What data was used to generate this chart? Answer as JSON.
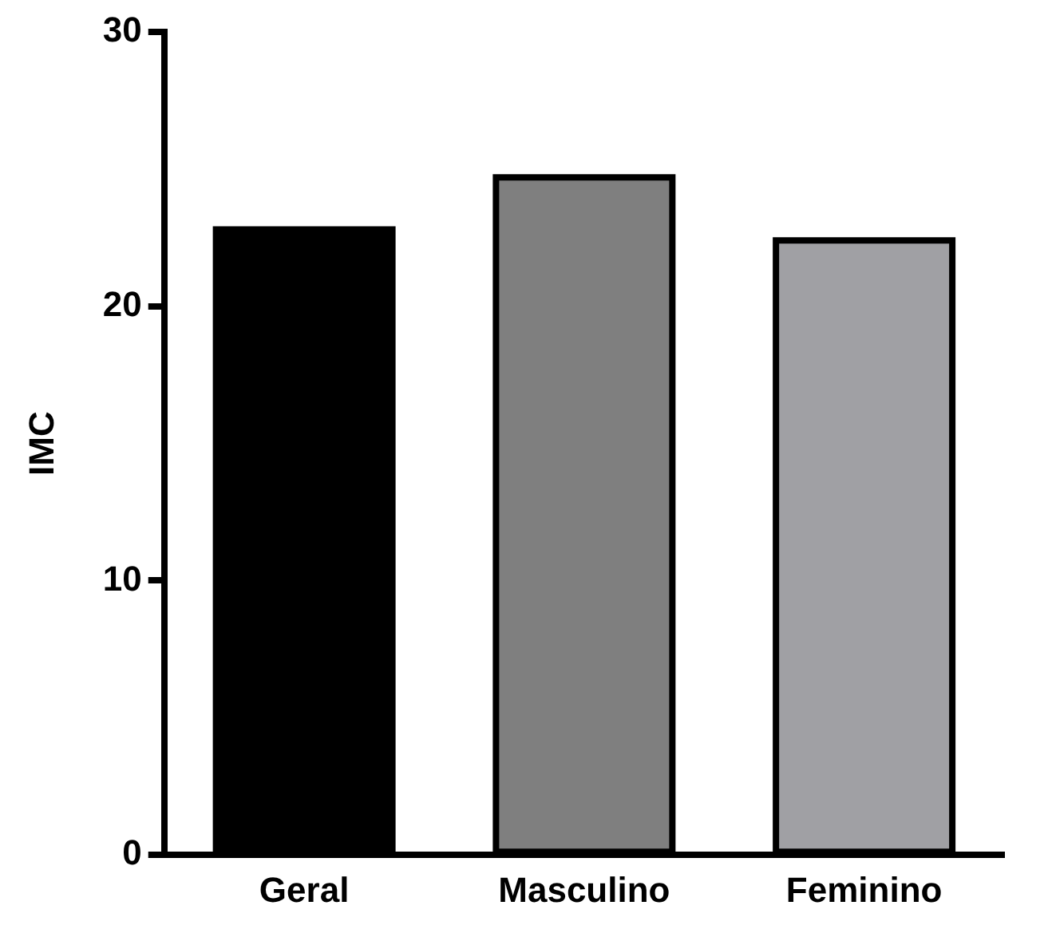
{
  "chart_data": {
    "type": "bar",
    "ylabel": "IMC",
    "categories": [
      "Geral",
      "Masculino",
      "Feminino"
    ],
    "values": [
      22.8,
      24.7,
      22.4
    ],
    "colors": [
      "#000000",
      "#7f7f7f",
      "#a0a0a4"
    ],
    "ylim": [
      0,
      30
    ],
    "yticks": [
      0,
      10,
      20,
      30
    ],
    "grid": false,
    "legend": false
  }
}
